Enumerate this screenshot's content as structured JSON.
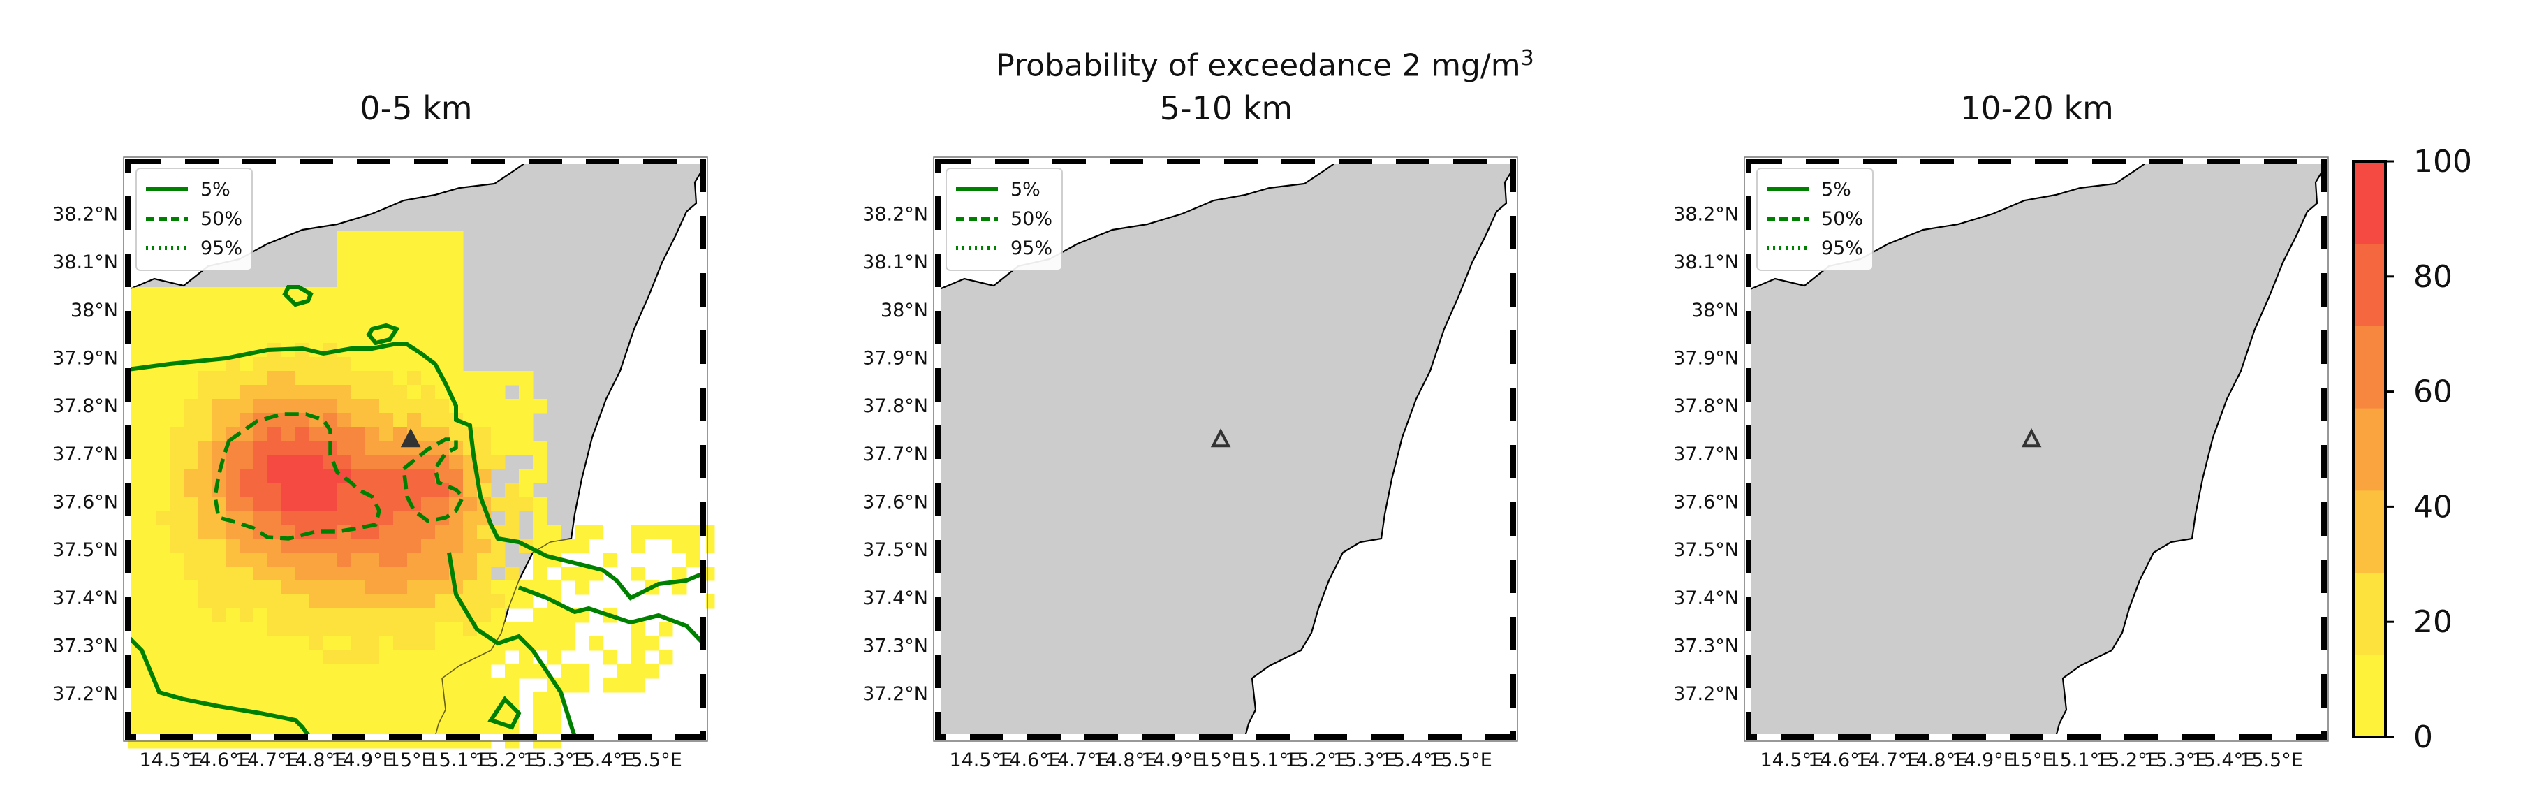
{
  "figure": {
    "suptitle": "Probability of exceedance 2 mg/m",
    "suptitle_unit_sup": "3"
  },
  "panels": [
    {
      "title": "0-5 km",
      "has_data": true
    },
    {
      "title": "5-10 km",
      "has_data": false
    },
    {
      "title": "10-20 km",
      "has_data": false
    }
  ],
  "legend": {
    "items": [
      {
        "label": "5%",
        "style": "solid"
      },
      {
        "label": "50%",
        "style": "dashed"
      },
      {
        "label": "95%",
        "style": "dotted"
      }
    ]
  },
  "axes": {
    "lat_ticks": [
      "38.2°N",
      "38.1°N",
      "38°N",
      "37.9°N",
      "37.8°N",
      "37.7°N",
      "37.6°N",
      "37.5°N",
      "37.4°N",
      "37.3°N",
      "37.2°N"
    ],
    "lat_values": [
      38.2,
      38.1,
      38.0,
      37.9,
      37.8,
      37.7,
      37.6,
      37.5,
      37.4,
      37.3,
      37.2
    ],
    "lon_ticks": [
      "14.5°E",
      "14.6°E",
      "14.7°E",
      "14.8°E",
      "14.9°E",
      "15°E",
      "15.1°E",
      "15.2°E",
      "15.3°E",
      "15.4°E",
      "15.5°E"
    ],
    "lon_values": [
      14.5,
      14.6,
      14.7,
      14.8,
      14.9,
      15.0,
      15.1,
      15.2,
      15.3,
      15.4,
      15.5
    ],
    "lon_range": [
      14.41,
      15.61
    ],
    "lat_range": [
      37.11,
      38.31
    ]
  },
  "colorbar": {
    "ticks": [
      "0",
      "20",
      "40",
      "60",
      "80",
      "100"
    ],
    "values": [
      0,
      20,
      40,
      60,
      80,
      100
    ],
    "range": [
      0,
      100
    ],
    "colors": [
      "#fff23a",
      "#fde13c",
      "#fcc03e",
      "#f9a43f",
      "#f7873f",
      "#f5673f",
      "#f44a42"
    ]
  },
  "volcano": {
    "lon": 15.0,
    "lat": 37.73,
    "marker": "triangle-up"
  },
  "colors": {
    "land": "#cccccc",
    "sea": "#ffffff",
    "contour": "#008000",
    "volcano": "#333333"
  }
}
